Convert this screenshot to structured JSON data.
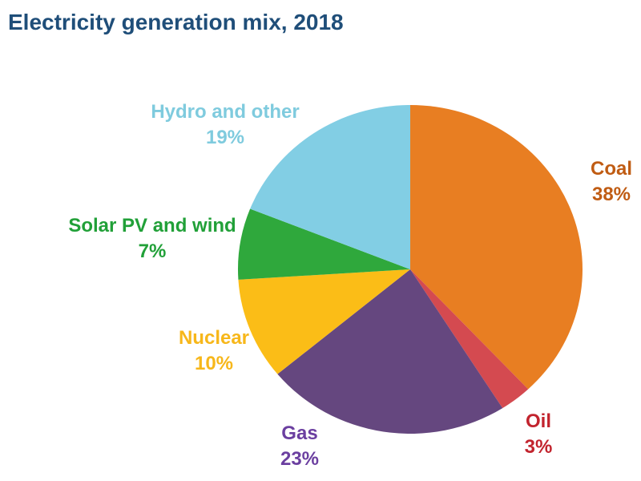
{
  "page": {
    "background_color": "#FFFFFF"
  },
  "chart_data": {
    "type": "pie",
    "title": "Electricity generation mix, 2018",
    "title_color": "#1F4E79",
    "start_angle_deg": 0,
    "direction": "clockwise",
    "grid": false,
    "legend_position": "labels-around-pie",
    "slices": [
      {
        "label": "Coal",
        "value": 38,
        "pct_label": "38%",
        "color": "#E87E22",
        "label_color": "#C05C13"
      },
      {
        "label": "Oil",
        "value": 3,
        "pct_label": "3%",
        "color": "#D44A50",
        "label_color": "#C2242E"
      },
      {
        "label": "Gas",
        "value": 23,
        "pct_label": "23%",
        "color": "#65477F",
        "label_color": "#6B3FA0"
      },
      {
        "label": "Nuclear",
        "value": 10,
        "pct_label": "10%",
        "color": "#FBBD17",
        "label_color": "#F7B71A"
      },
      {
        "label": "Solar PV and wind",
        "value": 7,
        "pct_label": "7%",
        "color": "#2FA83C",
        "label_color": "#21A038"
      },
      {
        "label": "Hydro and other",
        "value": 19,
        "pct_label": "19%",
        "color": "#82CEE4",
        "label_color": "#7FCBDE"
      }
    ]
  }
}
